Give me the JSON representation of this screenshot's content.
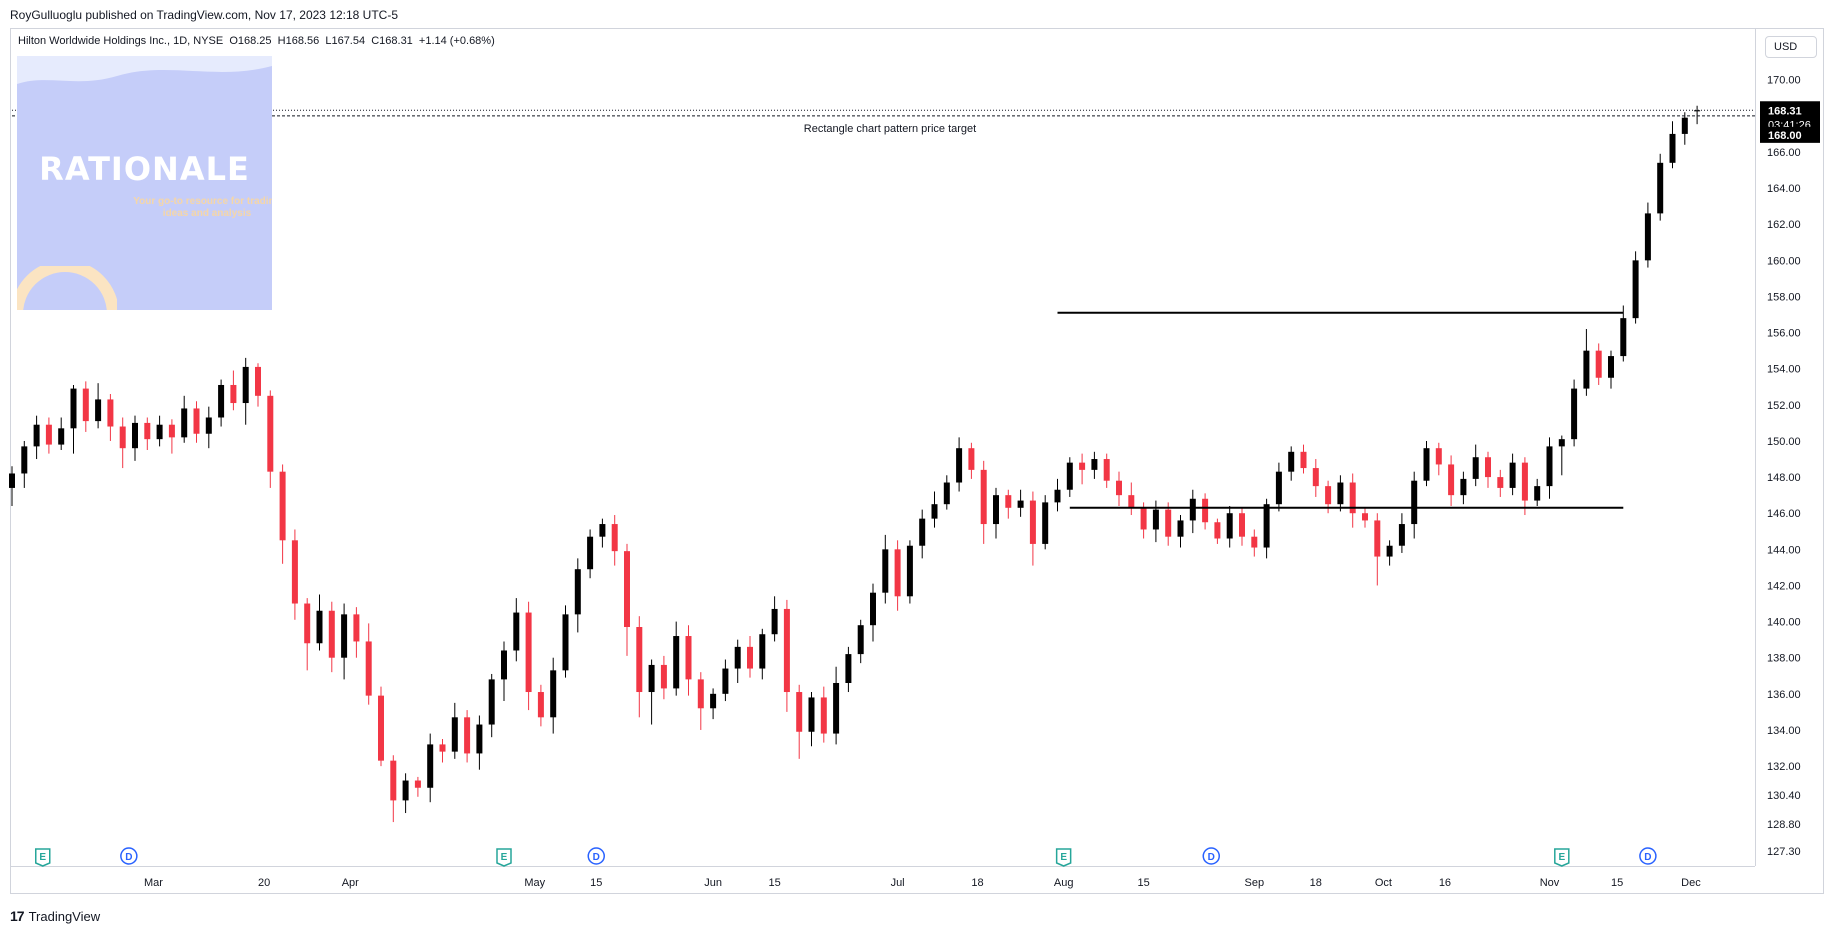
{
  "header": {
    "text": "RoyGulluoglu published on TradingView.com, Nov 17, 2023 12:18 UTC-5"
  },
  "legend": {
    "text": "Hilton Worldwide Holdings Inc., 1D, NYSE  O168.25  H168.56  L167.54  C168.31  +1.14 (+0.68%)"
  },
  "currency": "USD",
  "badge": {
    "title": "RATIONALE",
    "tagline": "Your go-to resource for trading ideas and analysis"
  },
  "annotation": {
    "text": "Rectangle chart pattern price target"
  },
  "price_labels": {
    "last_price": "168.31",
    "countdown": "03:41:26",
    "target": "168.00"
  },
  "footer": {
    "brand": "TradingView",
    "mark": "17"
  },
  "colors": {
    "up": "#000000",
    "down": "#f23645",
    "grid": "#d1d4dc",
    "text": "#131722",
    "event_e": "#26a69a",
    "event_d": "#2962ff"
  },
  "chart_data": {
    "type": "candlestick",
    "title": "Hilton Worldwide Holdings Inc., 1D, NYSE",
    "ylim": [
      126.8,
      172.2
    ],
    "y_ticks": [
      170,
      168,
      166,
      164,
      162,
      160,
      158,
      156,
      154,
      152,
      150,
      148,
      146,
      144,
      142,
      140,
      138,
      136,
      134,
      132,
      130.4,
      128.8,
      127.3
    ],
    "y_tick_labels": [
      "170.00",
      "168.00",
      "166.00",
      "164.00",
      "162.00",
      "160.00",
      "158.00",
      "156.00",
      "154.00",
      "152.00",
      "150.00",
      "148.00",
      "146.00",
      "144.00",
      "142.00",
      "140.00",
      "138.00",
      "136.00",
      "134.00",
      "132.00",
      "130.40",
      "128.80",
      "127.30"
    ],
    "x_ticks": [
      "Mar",
      "20",
      "Apr",
      "May",
      "15",
      "Jun",
      "15",
      "Jul",
      "18",
      "Aug",
      "15",
      "Sep",
      "18",
      "Oct",
      "16",
      "Nov",
      "15",
      "Dec"
    ],
    "x_tick_index": [
      11.5,
      20.5,
      27.5,
      42.5,
      47.5,
      57,
      62,
      72,
      78.5,
      85.5,
      92,
      101,
      106,
      111.5,
      116.5,
      125,
      130.5,
      136.5
    ],
    "n_bars": 137,
    "ohlc_changes": [
      [
        0.4,
        -1.0,
        0.8
      ],
      [
        0.3,
        -0.8,
        1.5
      ],
      [
        0.5,
        -0.7,
        1.2
      ],
      [
        0.4,
        -0.5,
        -1.1
      ],
      [
        0.6,
        -0.3,
        0.9
      ],
      [
        0.2,
        -1.4,
        2.2
      ],
      [
        0.4,
        -0.6,
        -1.8
      ],
      [
        0.9,
        -0.4,
        1.2
      ],
      [
        0.3,
        -0.8,
        -1.5
      ],
      [
        0.5,
        -1.1,
        -1.2
      ],
      [
        0.4,
        -0.7,
        1.4
      ],
      [
        0.3,
        -0.6,
        -0.9
      ],
      [
        0.5,
        -0.4,
        0.8
      ],
      [
        0.3,
        -0.9,
        -0.7
      ],
      [
        0.7,
        -0.3,
        1.6
      ],
      [
        0.4,
        -0.5,
        -1.4
      ],
      [
        0.6,
        -0.8,
        0.9
      ],
      [
        0.3,
        -0.5,
        1.8
      ],
      [
        0.8,
        -0.4,
        -1.0
      ],
      [
        0.5,
        -1.2,
        2.0
      ],
      [
        0.2,
        -0.6,
        -1.6
      ],
      [
        0.3,
        -0.9,
        -4.2
      ],
      [
        0.4,
        -1.3,
        -3.8
      ],
      [
        0.6,
        -0.9,
        -3.5
      ],
      [
        0.3,
        -1.5,
        -2.2
      ],
      [
        0.9,
        -0.4,
        1.8
      ],
      [
        0.5,
        -0.8,
        -2.6
      ],
      [
        0.6,
        -1.2,
        2.4
      ],
      [
        0.4,
        -0.9,
        -1.5
      ],
      [
        1.0,
        -0.5,
        -3.0
      ],
      [
        0.5,
        -0.3,
        -3.6
      ],
      [
        0.3,
        -1.2,
        -2.2
      ],
      [
        0.4,
        -0.7,
        1.1
      ],
      [
        0.2,
        -0.5,
        -0.4
      ],
      [
        0.6,
        -0.8,
        2.4
      ],
      [
        0.3,
        -0.6,
        -0.4
      ],
      [
        0.8,
        -0.4,
        1.9
      ],
      [
        0.4,
        -0.5,
        -2.0
      ],
      [
        0.5,
        -0.9,
        1.6
      ],
      [
        0.3,
        -0.7,
        2.5
      ],
      [
        0.5,
        -1.2,
        1.6
      ],
      [
        0.8,
        -0.6,
        2.1
      ],
      [
        0.6,
        -1.0,
        -4.4
      ],
      [
        0.4,
        -0.5,
        -1.4
      ],
      [
        0.7,
        -0.9,
        2.6
      ],
      [
        0.5,
        -0.4,
        3.1
      ],
      [
        0.6,
        -1.0,
        2.5
      ],
      [
        0.4,
        -0.5,
        1.8
      ],
      [
        0.3,
        -0.6,
        0.7
      ],
      [
        0.5,
        -0.8,
        -1.5
      ],
      [
        0.4,
        -1.6,
        -4.2
      ],
      [
        0.6,
        -1.4,
        -3.6
      ],
      [
        0.3,
        -1.8,
        1.5
      ],
      [
        0.5,
        -0.6,
        -1.3
      ],
      [
        0.8,
        -0.4,
        2.9
      ],
      [
        0.6,
        -0.9,
        -2.4
      ],
      [
        0.4,
        -1.2,
        -1.6
      ],
      [
        0.3,
        -0.6,
        0.8
      ],
      [
        0.5,
        -0.4,
        1.4
      ],
      [
        0.4,
        -0.8,
        1.2
      ],
      [
        0.6,
        -0.5,
        -1.2
      ],
      [
        0.3,
        -0.6,
        1.9
      ],
      [
        0.7,
        -0.4,
        1.4
      ],
      [
        0.5,
        -1.1,
        -4.6
      ],
      [
        0.4,
        -1.5,
        -2.2
      ],
      [
        0.3,
        -0.8,
        1.9
      ],
      [
        0.6,
        -0.5,
        -2.0
      ],
      [
        0.9,
        -0.6,
        2.8
      ],
      [
        0.4,
        -0.5,
        1.6
      ],
      [
        0.3,
        -0.5,
        1.6
      ],
      [
        0.5,
        -0.9,
        1.8
      ],
      [
        0.8,
        -0.6,
        2.4
      ],
      [
        0.5,
        -0.8,
        -2.6
      ],
      [
        0.3,
        -0.4,
        2.8
      ],
      [
        0.5,
        -0.7,
        1.5
      ],
      [
        0.7,
        -0.5,
        0.8
      ],
      [
        0.4,
        -0.3,
        1.2
      ],
      [
        0.6,
        -0.5,
        1.9
      ],
      [
        0.3,
        -0.5,
        -1.2
      ],
      [
        0.5,
        -1.1,
        -3.0
      ],
      [
        0.4,
        -0.8,
        1.6
      ],
      [
        0.3,
        -0.6,
        -0.7
      ],
      [
        0.6,
        -0.5,
        0.4
      ],
      [
        0.5,
        -1.2,
        -2.4
      ],
      [
        0.4,
        -0.3,
        2.3
      ],
      [
        0.6,
        -0.5,
        0.7
      ],
      [
        0.3,
        -0.4,
        1.5
      ],
      [
        0.5,
        -0.8,
        -0.4
      ],
      [
        0.4,
        -0.5,
        0.6
      ],
      [
        0.3,
        -0.4,
        -1.2
      ],
      [
        0.5,
        -0.6,
        -0.8
      ],
      [
        0.7,
        -0.4,
        -0.7
      ],
      [
        0.3,
        -0.5,
        -1.2
      ],
      [
        0.5,
        -0.7,
        1.1
      ],
      [
        0.4,
        -0.5,
        -1.5
      ],
      [
        0.3,
        -0.6,
        0.9
      ],
      [
        0.5,
        -0.7,
        1.2
      ],
      [
        0.3,
        -0.4,
        -1.3
      ],
      [
        0.2,
        -0.3,
        -0.9
      ],
      [
        0.4,
        -0.5,
        1.4
      ],
      [
        0.3,
        -0.5,
        -1.3
      ],
      [
        0.4,
        -0.5,
        -0.6
      ],
      [
        0.3,
        -0.6,
        2.4
      ],
      [
        0.5,
        -0.4,
        1.8
      ],
      [
        0.3,
        -0.5,
        1.1
      ],
      [
        0.4,
        -0.3,
        -0.9
      ],
      [
        0.5,
        -0.6,
        -1.0
      ],
      [
        0.3,
        -0.5,
        -1.0
      ],
      [
        0.4,
        -0.4,
        1.2
      ],
      [
        0.5,
        -0.8,
        -1.7
      ],
      [
        0.3,
        -0.4,
        -0.4
      ],
      [
        0.4,
        -1.6,
        -2.0
      ],
      [
        0.3,
        -0.5,
        0.6
      ],
      [
        0.6,
        -0.4,
        1.2
      ],
      [
        0.5,
        -0.8,
        2.4
      ],
      [
        0.4,
        -0.3,
        1.8
      ],
      [
        0.3,
        -0.6,
        -0.9
      ],
      [
        0.5,
        -0.6,
        -1.7
      ],
      [
        0.4,
        -0.5,
        0.9
      ],
      [
        0.7,
        -0.4,
        1.2
      ],
      [
        0.3,
        -0.6,
        -1.1
      ],
      [
        0.4,
        -0.5,
        -0.6
      ],
      [
        0.5,
        -0.4,
        1.4
      ],
      [
        0.3,
        -0.8,
        -2.1
      ],
      [
        0.4,
        -0.3,
        0.8
      ],
      [
        0.5,
        -0.7,
        2.2
      ],
      [
        0.2,
        -1.6,
        0.4
      ],
      [
        0.5,
        -0.4,
        2.8
      ],
      [
        1.2,
        -0.4,
        2.1
      ],
      [
        0.4,
        -0.4,
        -1.5
      ],
      [
        0.3,
        -0.6,
        1.2
      ],
      [
        0.7,
        -0.3,
        2.1
      ],
      [
        0.5,
        -0.3,
        3.2
      ],
      [
        0.6,
        -0.4,
        2.6
      ],
      [
        0.5,
        -0.4,
        2.8
      ],
      [
        0.7,
        -0.3,
        1.6
      ],
      [
        0.3,
        -0.6,
        0.9
      ]
    ],
    "start_close": 147.4,
    "final_ohlc": [
      168.25,
      168.56,
      167.54,
      168.31
    ],
    "horizontal_levels": [
      {
        "name": "rectangle-top",
        "value": 157.1,
        "from_bar": 85,
        "to_bar": 131
      },
      {
        "name": "rectangle-bottom",
        "value": 146.3,
        "from_bar": 86,
        "to_bar": 131
      },
      {
        "name": "price-target",
        "value": 168.0,
        "from_bar": 0,
        "to_bar": 136
      }
    ],
    "events": [
      {
        "type": "E",
        "bar": 2.5
      },
      {
        "type": "D",
        "bar": 9.5
      },
      {
        "type": "E",
        "bar": 40
      },
      {
        "type": "D",
        "bar": 47.5
      },
      {
        "type": "E",
        "bar": 85.5
      },
      {
        "type": "D",
        "bar": 97.5
      },
      {
        "type": "E",
        "bar": 126
      },
      {
        "type": "D",
        "bar": 133
      }
    ]
  }
}
